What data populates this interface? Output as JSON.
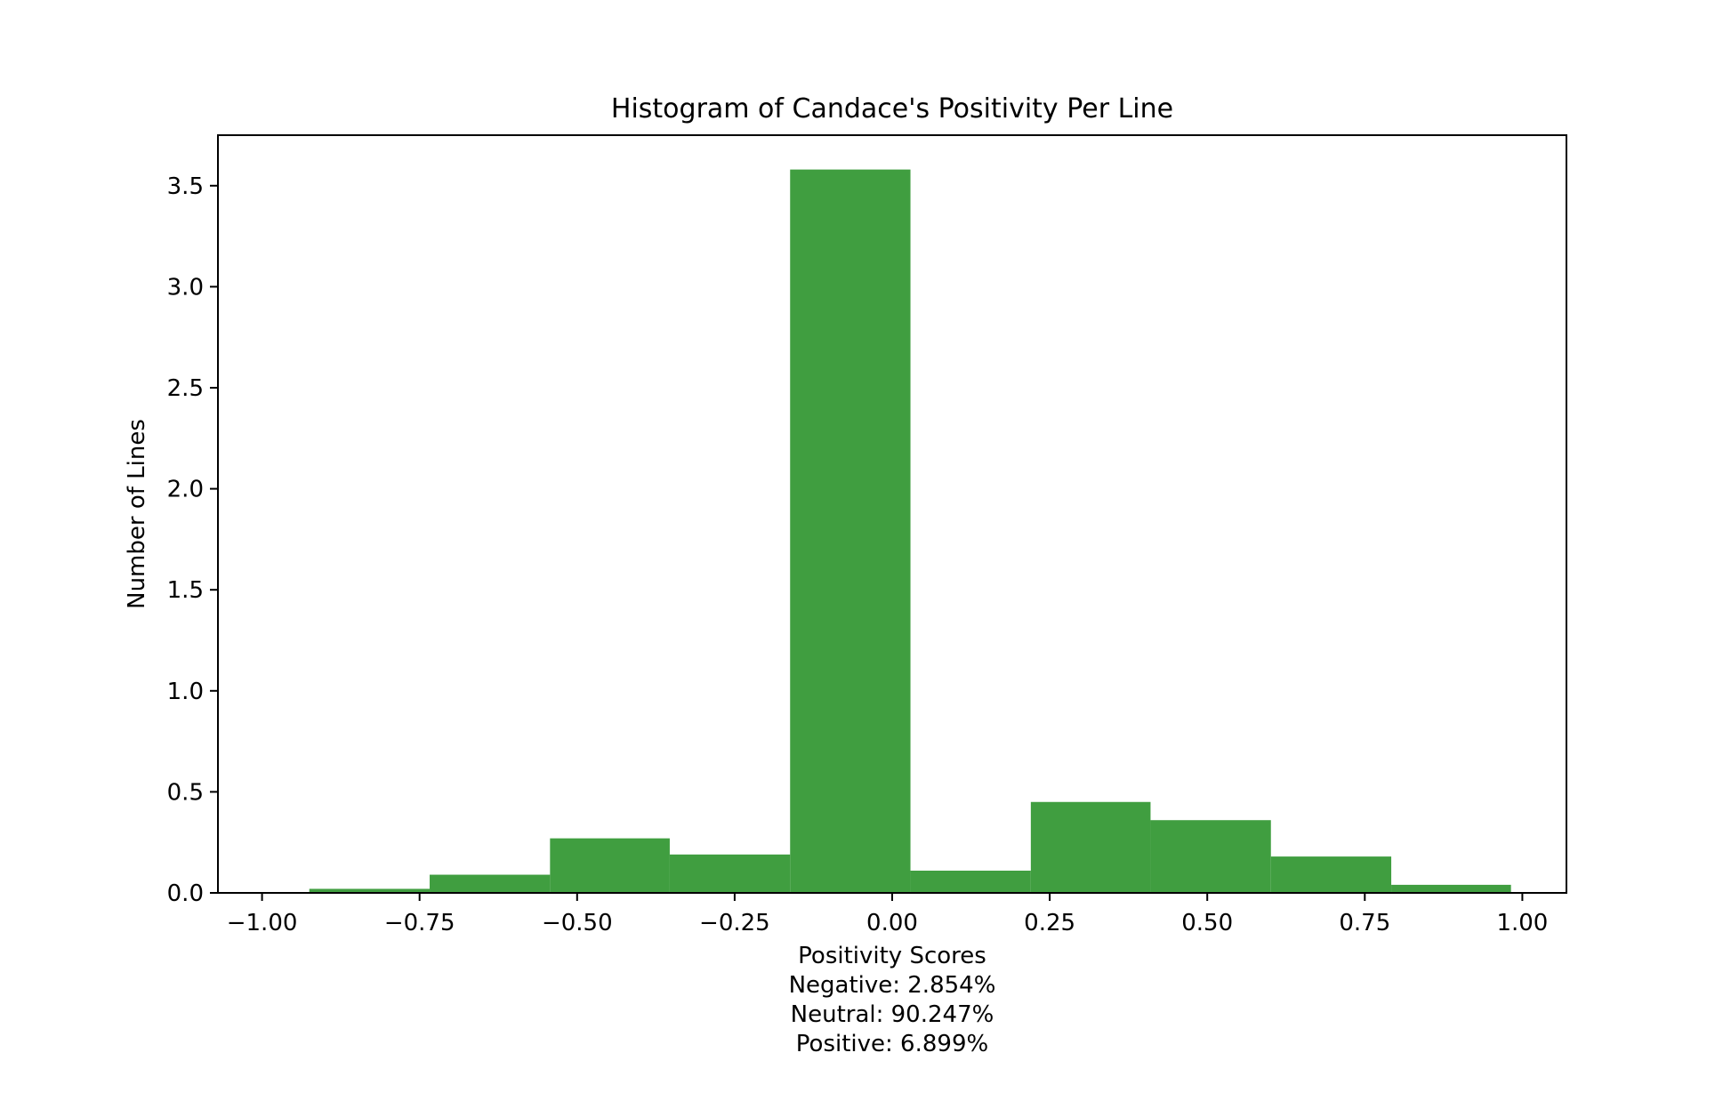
{
  "chart_data": {
    "type": "bar",
    "title": "Histogram of Candace's Positivity Per Line",
    "xlabel": "Positivity Scores",
    "xlabel_extra": [
      "Negative: 2.854%",
      "Neutral: 90.247%",
      "Positive: 6.899%"
    ],
    "ylabel": "Number of Lines",
    "xlim": [
      -1.07,
      1.07
    ],
    "ylim": [
      0,
      3.75
    ],
    "grid": false,
    "bar_color": "#409e40",
    "bin_edges": [
      -0.925,
      -0.734,
      -0.543,
      -0.353,
      -0.162,
      0.029,
      0.22,
      0.41,
      0.601,
      0.792,
      0.982
    ],
    "values": [
      0.02,
      0.09,
      0.27,
      0.19,
      3.58,
      0.11,
      0.45,
      0.36,
      0.18,
      0.04
    ],
    "xticks": [
      -1.0,
      -0.75,
      -0.5,
      -0.25,
      0.0,
      0.25,
      0.5,
      0.75,
      1.0
    ],
    "xtick_labels": [
      "−1.00",
      "−0.75",
      "−0.50",
      "−0.25",
      "0.00",
      "0.25",
      "0.50",
      "0.75",
      "1.00"
    ],
    "yticks": [
      0.0,
      0.5,
      1.0,
      1.5,
      2.0,
      2.5,
      3.0,
      3.5
    ],
    "ytick_labels": [
      "0.0",
      "0.5",
      "1.0",
      "1.5",
      "2.0",
      "2.5",
      "3.0",
      "3.5"
    ]
  }
}
